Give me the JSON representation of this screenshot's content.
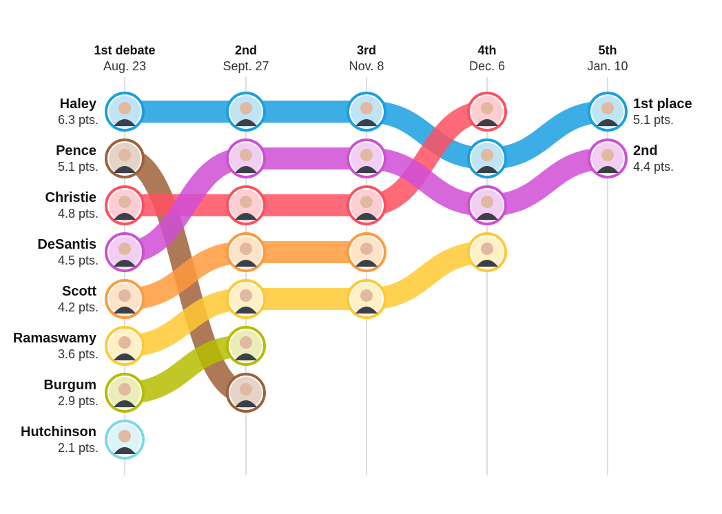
{
  "chart_data": {
    "type": "bump",
    "columns": [
      {
        "title": "1st debate",
        "date": "Aug. 23"
      },
      {
        "title": "2nd",
        "date": "Sept. 27"
      },
      {
        "title": "3rd",
        "date": "Nov. 8"
      },
      {
        "title": "4th",
        "date": "Dec. 6"
      },
      {
        "title": "5th",
        "date": "Jan. 10"
      }
    ],
    "candidates": [
      {
        "name": "Haley",
        "color": "#1a9fe0",
        "ranks": [
          1,
          1,
          1,
          2,
          1
        ]
      },
      {
        "name": "Pence",
        "color": "#a0613a",
        "ranks": [
          2,
          7,
          null,
          null,
          null
        ]
      },
      {
        "name": "Christie",
        "color": "#ff5060",
        "ranks": [
          3,
          3,
          3,
          1,
          null
        ]
      },
      {
        "name": "DeSantis",
        "color": "#d04ed6",
        "ranks": [
          4,
          2,
          2,
          3,
          2
        ]
      },
      {
        "name": "Scott",
        "color": "#ff9a3c",
        "ranks": [
          5,
          4,
          4,
          null,
          null
        ]
      },
      {
        "name": "Ramaswamy",
        "color": "#ffc933",
        "ranks": [
          6,
          5,
          5,
          4,
          null
        ]
      },
      {
        "name": "Burgum",
        "color": "#b5bd00",
        "ranks": [
          7,
          6,
          null,
          null,
          null
        ]
      },
      {
        "name": "Hutchinson",
        "color": "#7fd8e8",
        "ranks": [
          8,
          null,
          null,
          null,
          null
        ]
      }
    ],
    "left_labels": [
      {
        "name": "Haley",
        "pts": "6.3 pts."
      },
      {
        "name": "Pence",
        "pts": "5.1 pts."
      },
      {
        "name": "Christie",
        "pts": "4.8 pts."
      },
      {
        "name": "DeSantis",
        "pts": "4.5 pts."
      },
      {
        "name": "Scott",
        "pts": "4.2 pts."
      },
      {
        "name": "Ramaswamy",
        "pts": "3.6 pts."
      },
      {
        "name": "Burgum",
        "pts": "2.9 pts."
      },
      {
        "name": "Hutchinson",
        "pts": "2.1 pts."
      }
    ],
    "right_labels": [
      {
        "name": "1st place",
        "pts": "5.1 pts."
      },
      {
        "name": "2nd",
        "pts": "4.4 pts."
      }
    ]
  }
}
